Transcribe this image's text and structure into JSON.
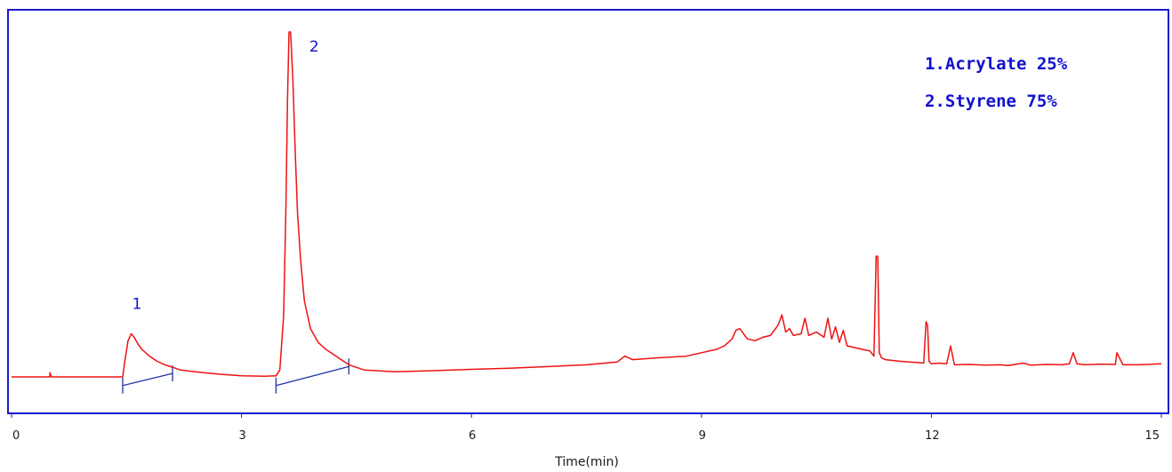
{
  "chart_data": {
    "type": "line",
    "xlabel": "Time(min)",
    "ylabel": "",
    "xlim": [
      0,
      15
    ],
    "ylim": [
      0,
      100
    ],
    "x_ticks": [
      0,
      3,
      6,
      9,
      12,
      15
    ],
    "x_tick_labels": [
      "0",
      "3",
      "6",
      "9",
      "12",
      "15"
    ],
    "grid": false,
    "colors": {
      "frame": "#1a1ad0",
      "trace": "#ee1111",
      "baseline": "#2233aa",
      "text": "#1010c8"
    },
    "legend": {
      "position": "top-right",
      "entries": [
        "1.Acrylate 25%",
        "2.Styrene 75%"
      ]
    },
    "series": [
      {
        "x": [
          0.0,
          0.5,
          0.5,
          0.52,
          1.0,
          1.45,
          1.48,
          1.52,
          1.56,
          1.6,
          1.65,
          1.7,
          1.8,
          1.9,
          2.0,
          2.1,
          2.2,
          2.5,
          2.7,
          3.0,
          3.3,
          3.45,
          3.5,
          3.55,
          3.58,
          3.6,
          3.62,
          3.64,
          3.67,
          3.7,
          3.73,
          3.77,
          3.82,
          3.9,
          4.0,
          4.1,
          4.2,
          4.3,
          4.4,
          4.6,
          5.0,
          5.5,
          6.0,
          6.5,
          7.0,
          7.5,
          7.9,
          8.0,
          8.1,
          8.4,
          8.8,
          9.0,
          9.2,
          9.3,
          9.4,
          9.45,
          9.5,
          9.6,
          9.7,
          9.8,
          9.9,
          10.0,
          10.05,
          10.1,
          10.15,
          10.2,
          10.3,
          10.35,
          10.4,
          10.5,
          10.6,
          10.65,
          10.7,
          10.75,
          10.8,
          10.85,
          10.9,
          11.0,
          11.1,
          11.2,
          11.25,
          11.28,
          11.3,
          11.32,
          11.35,
          11.4,
          11.6,
          11.8,
          11.9,
          11.93,
          11.95,
          11.97,
          12.0,
          12.1,
          12.2,
          12.25,
          12.3,
          12.5,
          12.7,
          12.9,
          13.0,
          13.2,
          13.3,
          13.5,
          13.7,
          13.8,
          13.85,
          13.9,
          14.0,
          14.2,
          14.4,
          14.42,
          14.5,
          14.7,
          15.0
        ],
        "y": [
          0.0,
          0.0,
          1.2,
          0.0,
          0.0,
          0.0,
          5.0,
          10.5,
          12.5,
          11.5,
          9.5,
          8.0,
          6.0,
          4.5,
          3.5,
          2.8,
          2.0,
          1.2,
          0.8,
          0.3,
          0.2,
          0.3,
          2.0,
          18.0,
          50.0,
          80.0,
          100.0,
          100.0,
          86.0,
          66.0,
          48.0,
          34.0,
          22.0,
          14.0,
          10.0,
          8.0,
          6.5,
          5.0,
          3.5,
          2.0,
          1.5,
          1.8,
          2.2,
          2.5,
          3.0,
          3.5,
          4.3,
          6.0,
          5.0,
          5.5,
          6.0,
          7.0,
          8.0,
          9.0,
          11.0,
          13.5,
          14.0,
          11.0,
          10.5,
          11.5,
          12.0,
          15.0,
          18.0,
          13.0,
          14.0,
          12.0,
          12.5,
          17.0,
          12.0,
          13.0,
          11.5,
          17.0,
          11.0,
          14.5,
          10.0,
          13.5,
          9.0,
          8.5,
          8.0,
          7.5,
          6.0,
          35.0,
          35.0,
          7.0,
          5.5,
          5.0,
          4.5,
          4.2,
          4.0,
          16.0,
          15.0,
          4.5,
          3.8,
          4.0,
          3.8,
          9.0,
          3.5,
          3.6,
          3.4,
          3.5,
          3.3,
          4.0,
          3.4,
          3.6,
          3.5,
          3.8,
          7.0,
          3.8,
          3.5,
          3.7,
          3.6,
          7.0,
          3.5,
          3.5,
          3.8
        ]
      }
    ],
    "peaks": [
      {
        "label": "1",
        "x": 1.55,
        "y": 12.5
      },
      {
        "label": "2",
        "x": 3.63,
        "y": 100.0
      }
    ],
    "integration_baselines": [
      {
        "x": [
          1.45,
          2.1
        ],
        "y": [
          -2.5,
          1.0
        ]
      },
      {
        "x": [
          3.45,
          4.4
        ],
        "y": [
          -2.5,
          3.0
        ]
      }
    ]
  }
}
